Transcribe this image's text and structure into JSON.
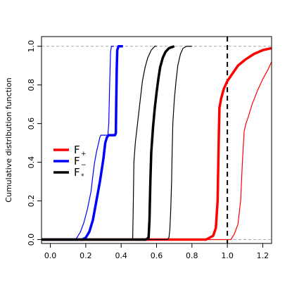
{
  "chart_data": {
    "type": "line",
    "ylabel": "Cumulative distribution function",
    "xlim": [
      -0.05,
      1.25
    ],
    "ylim": [
      -0.02,
      1.05
    ],
    "x_ticks": [
      0.0,
      0.2,
      0.4,
      0.6,
      0.8,
      1.0,
      1.2
    ],
    "x_tick_labels": [
      "0.0",
      "0.2",
      "0.4",
      "0.6",
      "0.8",
      "1.0",
      "1.2"
    ],
    "y_ticks": [
      0.0,
      0.2,
      0.4,
      0.6,
      0.8,
      1.0
    ],
    "y_tick_labels": [
      "0.0",
      "0.2",
      "0.4",
      "0.6",
      "0.8",
      "1.0"
    ],
    "reference_lines": {
      "horizontal": [
        0.0,
        1.0
      ],
      "vertical": [
        1.0
      ]
    },
    "legend": {
      "placement": "middle-left",
      "entries": [
        {
          "base": "F",
          "sub": "+",
          "color": "#ff0000"
        },
        {
          "base": "F",
          "sub": "−",
          "color": "#0000ff"
        },
        {
          "base": "F",
          "sub": "*",
          "color": "#000000"
        }
      ]
    },
    "series": [
      {
        "color": "#ff0000",
        "weight": "thick",
        "points": [
          [
            -0.05,
            0
          ],
          [
            0.88,
            0
          ],
          [
            0.9,
            0.01
          ],
          [
            0.92,
            0.02
          ],
          [
            0.935,
            0.06
          ],
          [
            0.945,
            0.2
          ],
          [
            0.95,
            0.45
          ],
          [
            0.955,
            0.68
          ],
          [
            0.965,
            0.73
          ],
          [
            0.98,
            0.78
          ],
          [
            1.0,
            0.82
          ],
          [
            1.03,
            0.86
          ],
          [
            1.06,
            0.9
          ],
          [
            1.1,
            0.93
          ],
          [
            1.15,
            0.96
          ],
          [
            1.2,
            0.98
          ],
          [
            1.25,
            0.99
          ]
        ]
      },
      {
        "color": "#ff0000",
        "weight": "thin",
        "points": [
          [
            -0.05,
            0
          ],
          [
            1.0,
            0
          ],
          [
            1.02,
            0.0
          ],
          [
            1.04,
            0.03
          ],
          [
            1.06,
            0.08
          ],
          [
            1.075,
            0.2
          ],
          [
            1.085,
            0.4
          ],
          [
            1.095,
            0.56
          ],
          [
            1.105,
            0.6
          ],
          [
            1.12,
            0.64
          ],
          [
            1.14,
            0.7
          ],
          [
            1.17,
            0.77
          ],
          [
            1.2,
            0.83
          ],
          [
            1.23,
            0.88
          ],
          [
            1.25,
            0.92
          ]
        ]
      },
      {
        "color": "#0000ff",
        "weight": "thick",
        "points": [
          [
            -0.05,
            0
          ],
          [
            0.18,
            0
          ],
          [
            0.2,
            0.01
          ],
          [
            0.22,
            0.04
          ],
          [
            0.24,
            0.1
          ],
          [
            0.26,
            0.2
          ],
          [
            0.28,
            0.3
          ],
          [
            0.3,
            0.42
          ],
          [
            0.31,
            0.5
          ],
          [
            0.32,
            0.53
          ],
          [
            0.33,
            0.54
          ],
          [
            0.35,
            0.54
          ],
          [
            0.365,
            0.54
          ],
          [
            0.37,
            0.55
          ],
          [
            0.372,
            0.7
          ],
          [
            0.375,
            0.88
          ],
          [
            0.378,
            0.98
          ],
          [
            0.385,
            1.0
          ],
          [
            0.41,
            1.0
          ]
        ]
      },
      {
        "color": "#0000ff",
        "weight": "thin",
        "points": [
          [
            -0.05,
            0
          ],
          [
            0.14,
            0
          ],
          [
            0.15,
            0.01
          ],
          [
            0.17,
            0.04
          ],
          [
            0.19,
            0.09
          ],
          [
            0.21,
            0.16
          ],
          [
            0.23,
            0.25
          ],
          [
            0.24,
            0.33
          ],
          [
            0.25,
            0.4
          ],
          [
            0.26,
            0.45
          ],
          [
            0.27,
            0.49
          ],
          [
            0.28,
            0.53
          ],
          [
            0.285,
            0.54
          ],
          [
            0.325,
            0.54
          ],
          [
            0.33,
            0.6
          ],
          [
            0.335,
            0.8
          ],
          [
            0.34,
            0.97
          ],
          [
            0.345,
            1.0
          ],
          [
            0.36,
            1.0
          ]
        ]
      },
      {
        "color": "#000000",
        "weight": "thick",
        "points": [
          [
            -0.05,
            0
          ],
          [
            0.54,
            0
          ],
          [
            0.555,
            0.01
          ],
          [
            0.56,
            0.1
          ],
          [
            0.565,
            0.3
          ],
          [
            0.57,
            0.45
          ],
          [
            0.58,
            0.58
          ],
          [
            0.59,
            0.68
          ],
          [
            0.6,
            0.76
          ],
          [
            0.61,
            0.83
          ],
          [
            0.62,
            0.89
          ],
          [
            0.635,
            0.94
          ],
          [
            0.65,
            0.97
          ],
          [
            0.67,
            0.99
          ],
          [
            0.7,
            1.0
          ]
        ]
      },
      {
        "color": "#000000",
        "weight": "thin",
        "points": [
          [
            -0.05,
            0
          ],
          [
            0.465,
            0
          ],
          [
            0.468,
            0.15
          ],
          [
            0.472,
            0.4
          ],
          [
            0.48,
            0.5
          ],
          [
            0.49,
            0.58
          ],
          [
            0.5,
            0.66
          ],
          [
            0.51,
            0.74
          ],
          [
            0.52,
            0.82
          ],
          [
            0.535,
            0.89
          ],
          [
            0.55,
            0.94
          ],
          [
            0.57,
            0.98
          ],
          [
            0.59,
            1.0
          ],
          [
            0.6,
            1.0
          ]
        ]
      },
      {
        "color": "#000000",
        "weight": "thin",
        "points": [
          [
            -0.05,
            0
          ],
          [
            0.66,
            0
          ],
          [
            0.67,
            0.01
          ],
          [
            0.675,
            0.05
          ],
          [
            0.68,
            0.15
          ],
          [
            0.685,
            0.3
          ],
          [
            0.688,
            0.45
          ],
          [
            0.692,
            0.6
          ],
          [
            0.7,
            0.72
          ],
          [
            0.71,
            0.82
          ],
          [
            0.72,
            0.9
          ],
          [
            0.735,
            0.96
          ],
          [
            0.75,
            0.99
          ],
          [
            0.77,
            1.0
          ],
          [
            0.8,
            1.0
          ]
        ]
      }
    ]
  }
}
